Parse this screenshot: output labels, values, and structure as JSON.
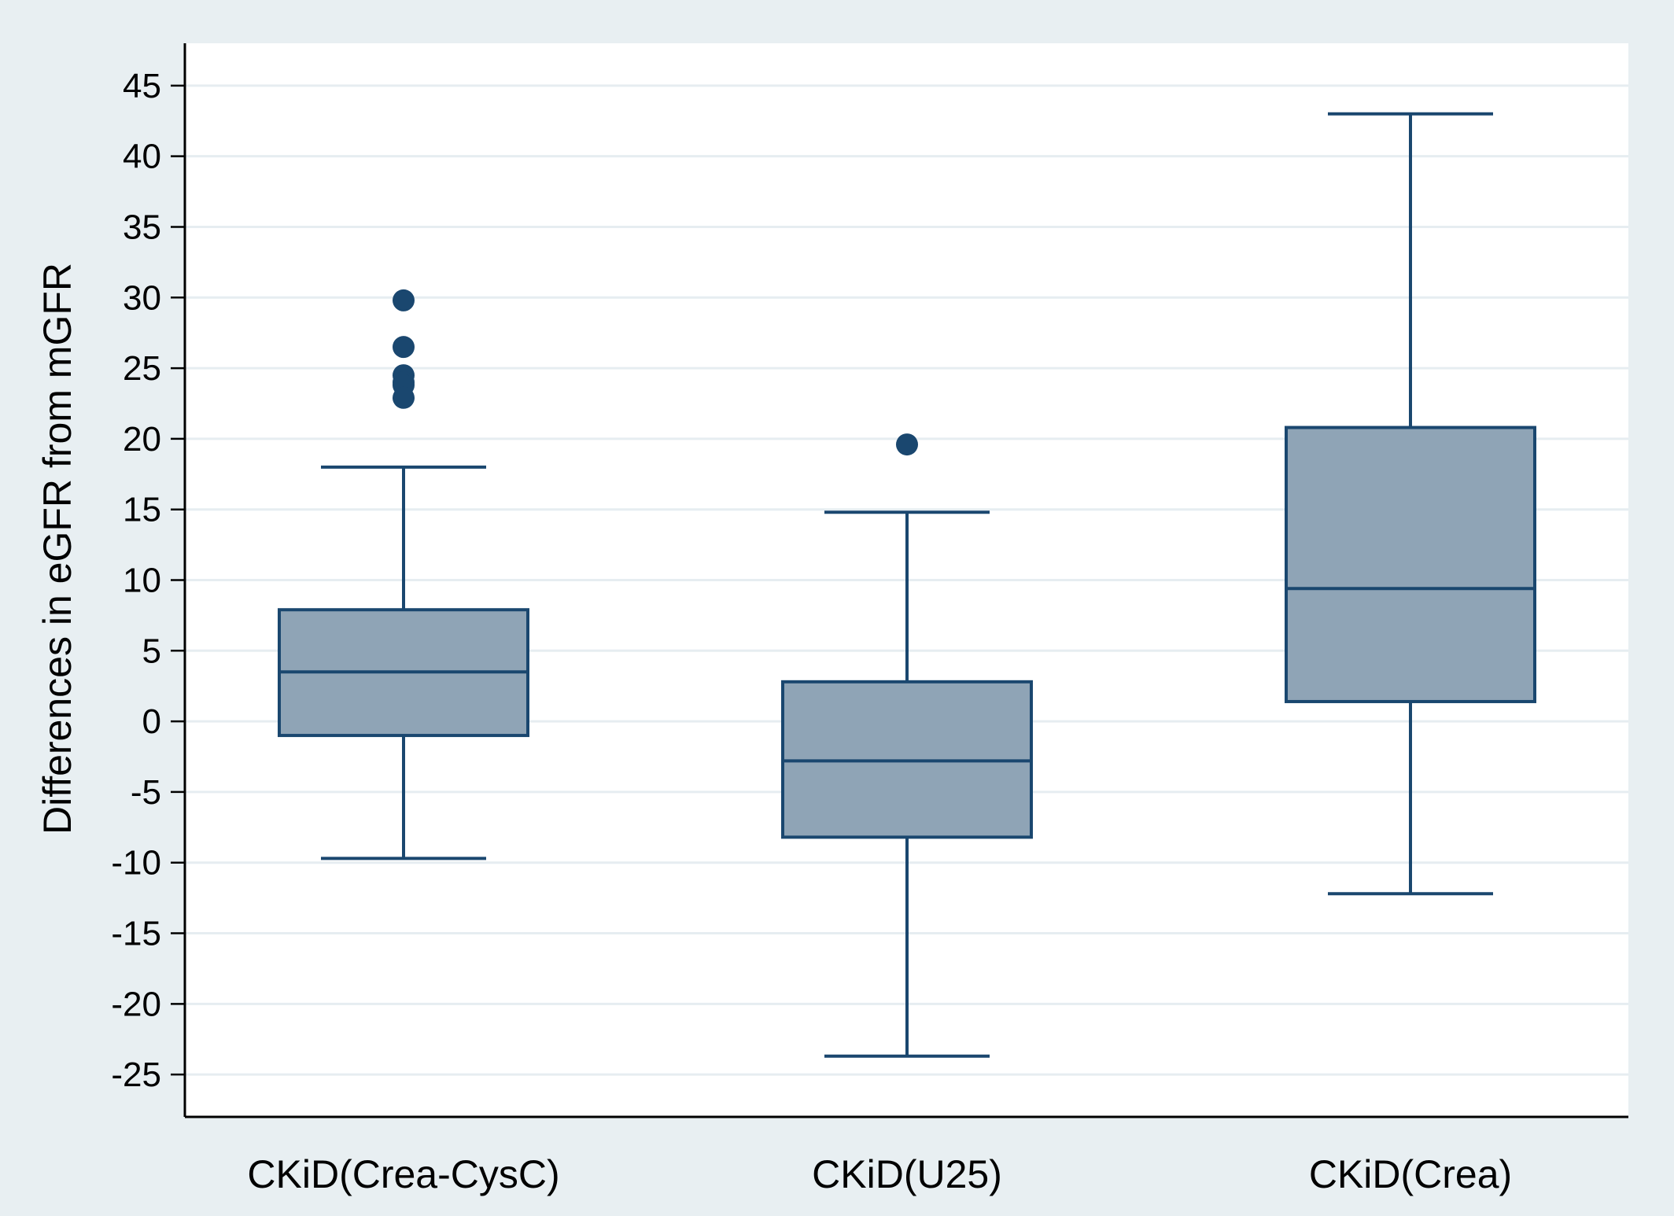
{
  "chart_data": {
    "type": "box",
    "title": "",
    "xlabel": "",
    "ylabel": "Differences in eGFR from mGFR",
    "ylim": [
      -28,
      48
    ],
    "yticks": [
      45,
      40,
      35,
      30,
      25,
      20,
      15,
      10,
      5,
      0,
      -5,
      -10,
      -15,
      -20,
      -25
    ],
    "ytick_labels": [
      "45",
      "40",
      "35",
      "30",
      "25",
      "20",
      "15",
      "10",
      "5",
      "0",
      "-5",
      "-10",
      "-15",
      "-20",
      "-25"
    ],
    "grid": true,
    "categories": [
      "CKiD(Crea-CysC)",
      "CKiD(U25)",
      "CKiD(Crea)"
    ],
    "boxes": [
      {
        "whisker_low": -9.7,
        "q1": -1.0,
        "median": 3.5,
        "q3": 7.9,
        "whisker_high": 18.0,
        "outliers": [
          29.8,
          26.5,
          24.5,
          24.0,
          23.8,
          22.9
        ]
      },
      {
        "whisker_low": -23.7,
        "q1": -8.2,
        "median": -2.8,
        "q3": 2.8,
        "whisker_high": 14.8,
        "outliers": [
          19.6
        ]
      },
      {
        "whisker_low": -12.2,
        "q1": 1.4,
        "median": 9.4,
        "q3": 20.8,
        "whisker_high": 43.0,
        "outliers": []
      }
    ],
    "colors": {
      "background": "#e8eff2",
      "plot_area": "#ffffff",
      "gridline": "#e6edf1",
      "box_fill": "#8fa4b6",
      "box_stroke": "#1a476f",
      "outlier": "#1a476f",
      "axis": "#000000"
    }
  }
}
